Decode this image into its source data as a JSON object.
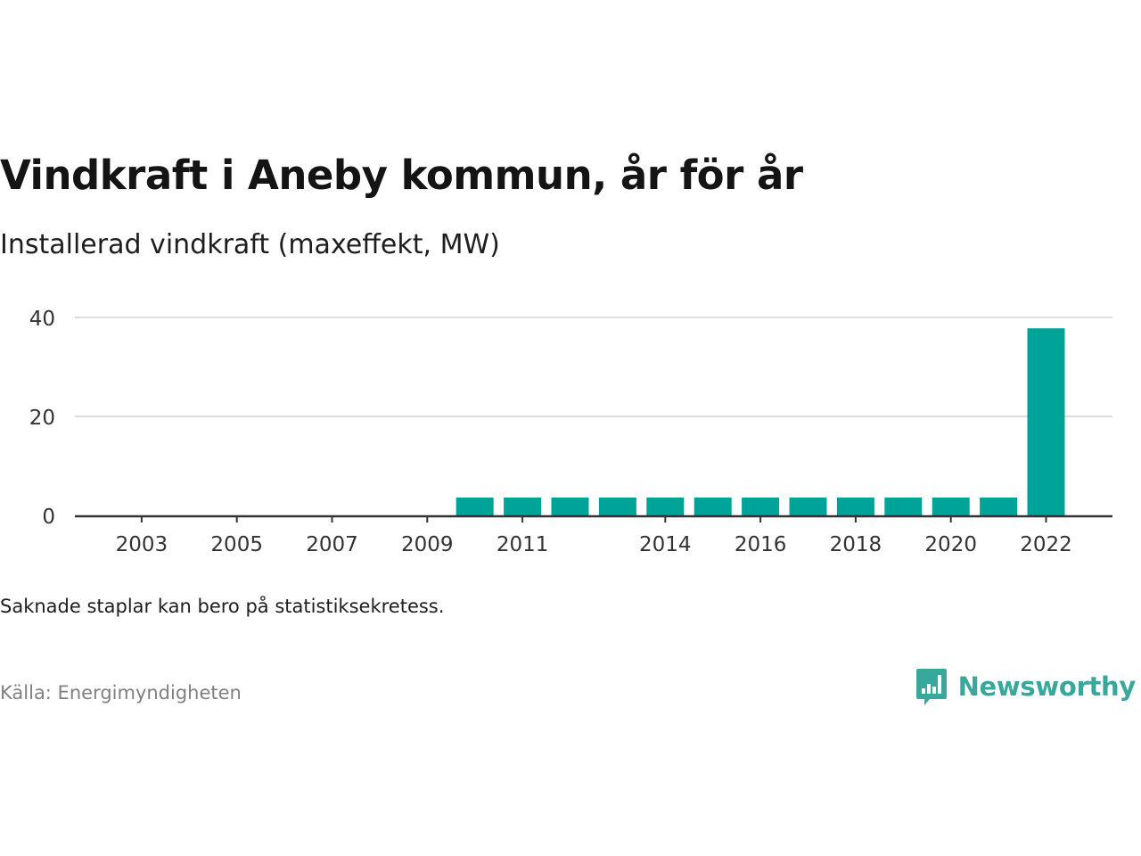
{
  "header": {
    "title": "Vindkraft i Aneby kommun, år för år",
    "subtitle": "Installerad vindkraft (maxeffekt, MW)"
  },
  "footer": {
    "note": "Saknade staplar kan bero på statistiksekretess.",
    "source": "Källa: Energimyndigheten",
    "brand": "Newsworthy"
  },
  "colors": {
    "bar": "#00a398",
    "grid": "#dddddd",
    "axis": "#333333",
    "brand": "#38a89d"
  },
  "chart_data": {
    "type": "bar",
    "categories": [
      "2002",
      "2003",
      "2004",
      "2005",
      "2006",
      "2007",
      "2008",
      "2009",
      "2010",
      "2011",
      "2012",
      "2013",
      "2014",
      "2015",
      "2016",
      "2017",
      "2018",
      "2019",
      "2020",
      "2021",
      "2022"
    ],
    "values": [
      0,
      0,
      0,
      0,
      0,
      0,
      0,
      0,
      3.6,
      3.6,
      3.6,
      3.6,
      3.6,
      3.6,
      3.6,
      3.6,
      3.6,
      3.6,
      3.6,
      3.6,
      37.8
    ],
    "x_tick_labels": [
      "2003",
      "2005",
      "2007",
      "2009",
      "2011",
      "2014",
      "2016",
      "2018",
      "2020",
      "2022"
    ],
    "y_ticks": [
      0,
      20,
      40
    ],
    "ylim": [
      0,
      40
    ],
    "xlabel": "",
    "ylabel": "",
    "grid": true,
    "legend": "none"
  }
}
